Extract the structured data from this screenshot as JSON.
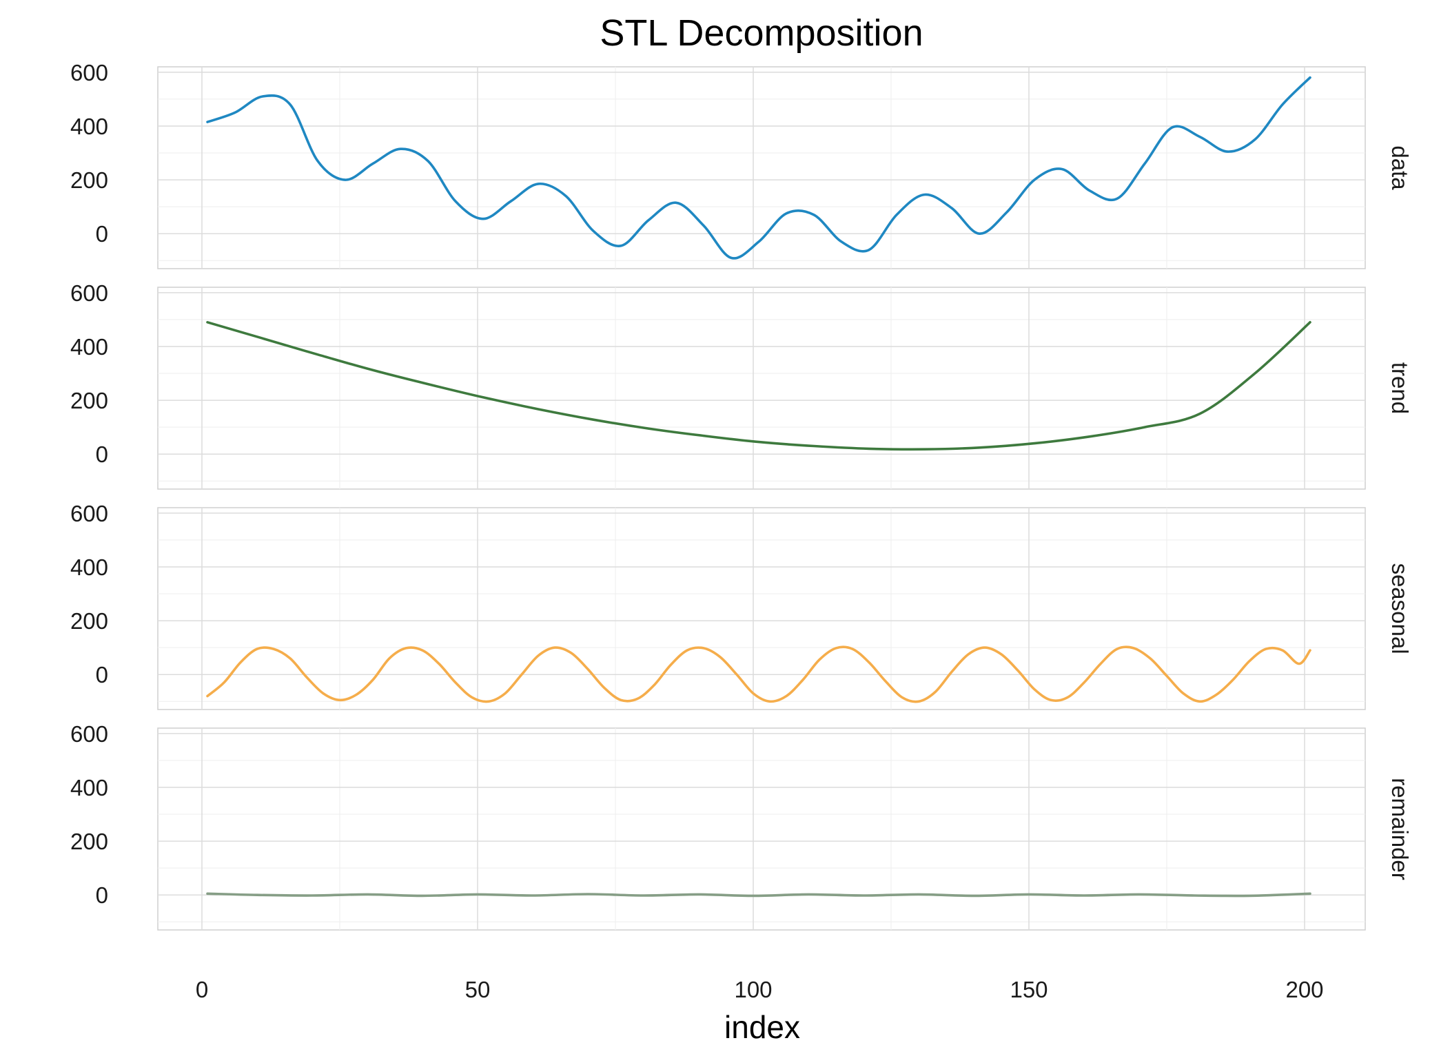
{
  "chart_data": {
    "type": "line",
    "title": "STL Decomposition",
    "xlabel": "index",
    "ylabel": "",
    "xlim": [
      -8,
      211
    ],
    "ylim": [
      -130,
      620
    ],
    "x_ticks": [
      0,
      50,
      100,
      150,
      200
    ],
    "y_ticks": [
      0,
      200,
      400,
      600
    ],
    "grid": true,
    "panels": [
      {
        "name": "data",
        "color": "#1f88c2",
        "x": [
          1,
          6,
          11,
          16,
          21,
          26,
          31,
          36,
          41,
          46,
          51,
          56,
          61,
          66,
          71,
          76,
          81,
          86,
          91,
          96,
          101,
          106,
          111,
          116,
          121,
          126,
          131,
          136,
          141,
          146,
          151,
          156,
          161,
          166,
          171,
          176,
          181,
          186,
          191,
          196,
          201
        ],
        "values": [
          415,
          450,
          510,
          480,
          270,
          200,
          260,
          315,
          270,
          120,
          55,
          120,
          185,
          140,
          10,
          -45,
          50,
          115,
          30,
          -90,
          -30,
          75,
          70,
          -30,
          -60,
          70,
          145,
          95,
          0,
          80,
          200,
          240,
          160,
          130,
          260,
          395,
          360,
          305,
          350,
          480,
          580
        ]
      },
      {
        "name": "trend",
        "color": "#3e7a3e",
        "x": [
          1,
          11,
          21,
          31,
          41,
          51,
          61,
          71,
          81,
          91,
          101,
          111,
          121,
          131,
          141,
          151,
          161,
          171,
          181,
          191,
          201
        ],
        "values": [
          490,
          430,
          370,
          312,
          260,
          211,
          167,
          128,
          95,
          68,
          45,
          30,
          20,
          18,
          24,
          40,
          65,
          100,
          150,
          300,
          490
        ]
      },
      {
        "name": "seasonal",
        "color": "#f5ad4b",
        "x": [
          1,
          4,
          7,
          10,
          13,
          16,
          19,
          22,
          25,
          28,
          31,
          34,
          37,
          40,
          43,
          46,
          49,
          52,
          55,
          58,
          61,
          64,
          67,
          70,
          73,
          76,
          79,
          82,
          85,
          88,
          91,
          94,
          97,
          100,
          103,
          106,
          109,
          112,
          115,
          118,
          121,
          124,
          127,
          130,
          133,
          136,
          139,
          142,
          145,
          148,
          151,
          154,
          157,
          160,
          163,
          166,
          169,
          172,
          175,
          178,
          181,
          184,
          187,
          190,
          193,
          196,
          199,
          201
        ],
        "values": [
          -80,
          -30,
          45,
          95,
          95,
          60,
          -10,
          -70,
          -95,
          -75,
          -20,
          60,
          98,
          90,
          40,
          -30,
          -85,
          -100,
          -70,
          0,
          70,
          100,
          80,
          20,
          -50,
          -95,
          -90,
          -40,
          35,
          90,
          98,
          65,
          0,
          -70,
          -100,
          -80,
          -20,
          55,
          98,
          95,
          45,
          -25,
          -85,
          -100,
          -65,
          10,
          75,
          100,
          75,
          15,
          -55,
          -95,
          -85,
          -30,
          40,
          95,
          98,
          60,
          -5,
          -70,
          -100,
          -75,
          -20,
          50,
          95,
          90,
          40,
          90
        ]
      },
      {
        "name": "remainder",
        "color": "#869e86",
        "x": [
          1,
          10,
          20,
          30,
          40,
          50,
          60,
          70,
          80,
          90,
          100,
          110,
          120,
          130,
          140,
          150,
          160,
          170,
          180,
          190,
          201
        ],
        "values": [
          5,
          0,
          -2,
          2,
          -3,
          2,
          -2,
          3,
          -2,
          2,
          -3,
          2,
          -2,
          2,
          -3,
          2,
          -2,
          2,
          -2,
          -3,
          5
        ]
      }
    ]
  }
}
